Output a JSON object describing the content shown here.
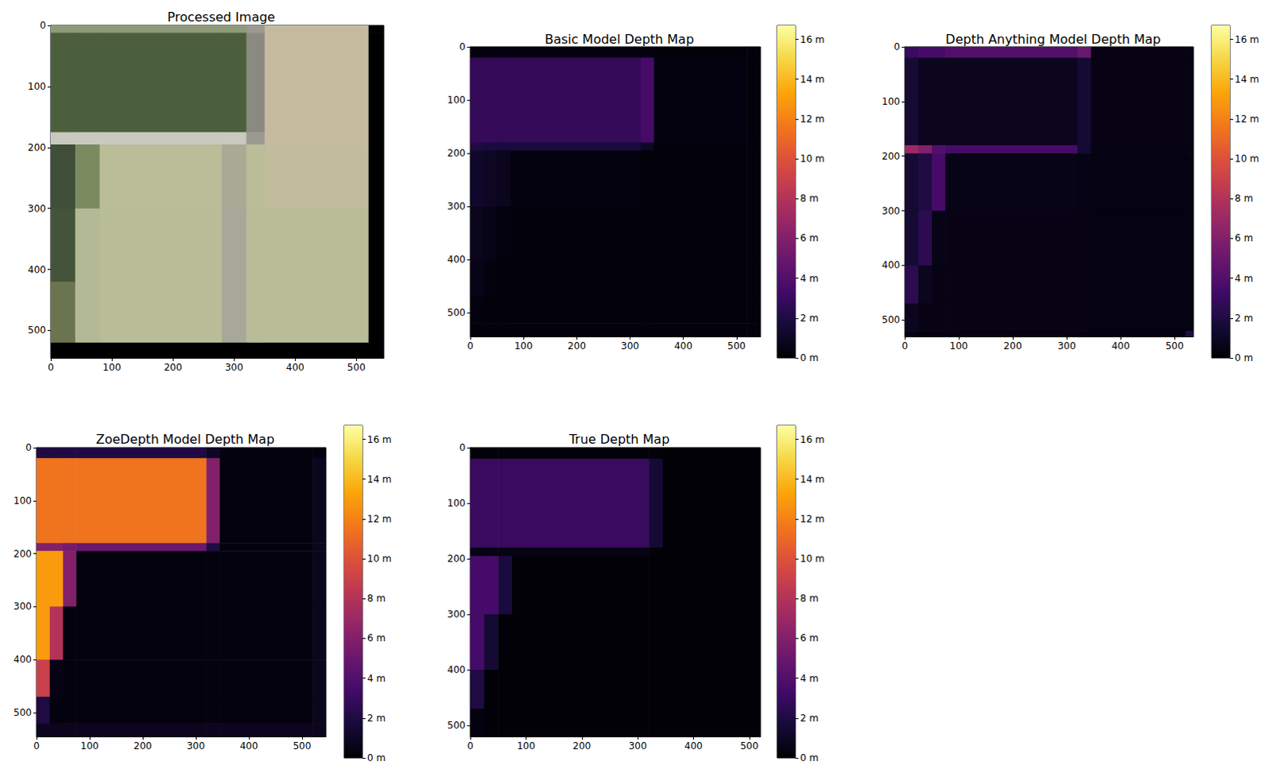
{
  "chart_data": [
    {
      "type": "image",
      "title": "Processed Image",
      "xlim": [
        0,
        545
      ],
      "ylim": [
        0,
        545
      ],
      "xticks": [
        0,
        100,
        200,
        300,
        400,
        500
      ],
      "yticks": [
        0,
        100,
        200,
        300,
        400,
        500
      ],
      "x_edges": [
        0,
        40,
        80,
        280,
        320,
        350,
        520,
        545
      ],
      "y_edges": [
        0,
        12,
        175,
        195,
        300,
        420,
        520,
        545
      ],
      "cells": [
        [
          "#8f9a7a",
          "#8f9a7a",
          "#8f9a7a",
          "#8f9a7a",
          "#9a9a90",
          "#c4baa0",
          "#000000"
        ],
        [
          "#4c5f3c",
          "#4c5f3c",
          "#4c5f3c",
          "#4c5f3c",
          "#8a8a80",
          "#c6bb9f",
          "#000000"
        ],
        [
          "#c9c9c0",
          "#c9c9c0",
          "#c9c9c0",
          "#c9c9c0",
          "#9a9a90",
          "#c6bb9f",
          "#000000"
        ],
        [
          "#3f4e38",
          "#7c8a60",
          "#b9bd98",
          "#a8aa94",
          "#b9bd98",
          "#c3bc9c",
          "#000000"
        ],
        [
          "#45533a",
          "#b4b995",
          "#b8bd98",
          "#a8a898",
          "#b8bd98",
          "#b8bd98",
          "#000000"
        ],
        [
          "#6a7550",
          "#b4b995",
          "#b8bd98",
          "#a8a898",
          "#b8bd98",
          "#b8bd98",
          "#000000"
        ],
        [
          "#000000",
          "#000000",
          "#000000",
          "#000000",
          "#000000",
          "#000000",
          "#000000"
        ]
      ]
    },
    {
      "type": "heatmap",
      "title": "Basic Model Depth Map",
      "color": "inferno",
      "xlim": [
        0,
        545
      ],
      "ylim": [
        0,
        545
      ],
      "xticks": [
        0,
        100,
        200,
        300,
        400,
        500
      ],
      "yticks": [
        0,
        100,
        200,
        300,
        400,
        500
      ],
      "x_edges": [
        0,
        25,
        50,
        75,
        320,
        345,
        520,
        545
      ],
      "y_edges": [
        0,
        20,
        180,
        195,
        300,
        400,
        470,
        520,
        545
      ],
      "cells": [
        [
          0.3,
          0.3,
          0.3,
          0.3,
          0.3,
          0.2,
          0.2
        ],
        [
          2.8,
          2.8,
          2.8,
          2.8,
          3.5,
          0.3,
          0.2
        ],
        [
          2.0,
          1.8,
          1.8,
          1.8,
          1.0,
          0.2,
          0.2
        ],
        [
          1.2,
          1.0,
          0.8,
          0.3,
          0.2,
          0.2,
          0.2
        ],
        [
          0.8,
          0.6,
          0.3,
          0.2,
          0.2,
          0.2,
          0.2
        ],
        [
          0.6,
          0.3,
          0.2,
          0.2,
          0.2,
          0.2,
          0.2
        ],
        [
          0.3,
          0.2,
          0.2,
          0.2,
          0.2,
          0.2,
          0.2
        ],
        [
          0.2,
          0.2,
          0.2,
          0.2,
          0.2,
          0.2,
          0.2
        ]
      ],
      "colorbar": {
        "range": [
          0,
          16.7
        ],
        "ticks": [
          {
            "value": 0,
            "label": "0 m"
          },
          {
            "value": 2,
            "label": "2 m"
          },
          {
            "value": 4,
            "label": "4 m"
          },
          {
            "value": 6,
            "label": "6 m"
          },
          {
            "value": 8,
            "label": "8 m"
          },
          {
            "value": 10,
            "label": "10 m"
          },
          {
            "value": 12,
            "label": "12 m"
          },
          {
            "value": 14,
            "label": "14 m"
          },
          {
            "value": 16,
            "label": "16 m"
          }
        ]
      }
    },
    {
      "type": "heatmap",
      "title": "Depth Anything Model Depth Map",
      "color": "inferno",
      "xlim": [
        0,
        535
      ],
      "ylim": [
        0,
        530
      ],
      "xticks": [
        0,
        100,
        200,
        300,
        400,
        500
      ],
      "yticks": [
        0,
        100,
        200,
        300,
        400,
        500
      ],
      "x_edges": [
        0,
        25,
        50,
        75,
        320,
        345,
        520,
        535
      ],
      "y_edges": [
        0,
        20,
        180,
        195,
        300,
        400,
        470,
        520,
        530
      ],
      "cells": [
        [
          3.0,
          3.5,
          3.5,
          4.0,
          5.0,
          0.5,
          0.5
        ],
        [
          1.5,
          0.8,
          0.8,
          0.8,
          1.5,
          0.5,
          0.5
        ],
        [
          7.0,
          6.0,
          4.0,
          3.5,
          1.5,
          0.5,
          0.5
        ],
        [
          1.5,
          2.0,
          3.5,
          0.6,
          0.5,
          0.4,
          0.4
        ],
        [
          1.5,
          2.5,
          0.6,
          0.5,
          0.5,
          0.4,
          0.4
        ],
        [
          2.5,
          0.8,
          0.5,
          0.5,
          0.5,
          0.4,
          0.4
        ],
        [
          0.8,
          0.5,
          0.5,
          0.5,
          0.5,
          0.4,
          0.4
        ],
        [
          0.3,
          0.3,
          0.3,
          0.3,
          0.3,
          0.3,
          2.0
        ]
      ],
      "colorbar": {
        "range": [
          0,
          16.7
        ],
        "ticks": [
          {
            "value": 0,
            "label": "0 m"
          },
          {
            "value": 2,
            "label": "2 m"
          },
          {
            "value": 4,
            "label": "4 m"
          },
          {
            "value": 6,
            "label": "6 m"
          },
          {
            "value": 8,
            "label": "8 m"
          },
          {
            "value": 10,
            "label": "10 m"
          },
          {
            "value": 12,
            "label": "12 m"
          },
          {
            "value": 14,
            "label": "14 m"
          },
          {
            "value": 16,
            "label": "16 m"
          }
        ]
      }
    },
    {
      "type": "heatmap",
      "title": "ZoeDepth Model Depth Map",
      "color": "inferno",
      "xlim": [
        0,
        545
      ],
      "ylim": [
        0,
        545
      ],
      "xticks": [
        0,
        100,
        200,
        300,
        400,
        500
      ],
      "yticks": [
        0,
        100,
        200,
        300,
        400,
        500
      ],
      "x_edges": [
        0,
        25,
        50,
        75,
        320,
        345,
        520,
        545
      ],
      "y_edges": [
        0,
        20,
        180,
        195,
        300,
        400,
        470,
        520,
        545
      ],
      "cells": [
        [
          2.0,
          2.0,
          2.0,
          2.0,
          1.0,
          0.3,
          0.3
        ],
        [
          11.5,
          11.5,
          11.5,
          11.5,
          6.0,
          0.3,
          0.8
        ],
        [
          6.0,
          6.0,
          5.5,
          5.0,
          2.0,
          0.3,
          0.8
        ],
        [
          13.0,
          13.0,
          6.0,
          0.3,
          0.3,
          0.3,
          0.8
        ],
        [
          13.0,
          8.0,
          0.3,
          0.3,
          0.3,
          0.3,
          0.8
        ],
        [
          9.0,
          0.5,
          0.3,
          0.3,
          0.3,
          0.3,
          0.8
        ],
        [
          2.0,
          0.3,
          0.3,
          0.3,
          0.3,
          0.3,
          0.8
        ],
        [
          0.8,
          0.8,
          0.8,
          0.8,
          0.8,
          0.8,
          0.8
        ]
      ],
      "colorbar": {
        "range": [
          0,
          16.7
        ],
        "ticks": [
          {
            "value": 0,
            "label": "0 m"
          },
          {
            "value": 2,
            "label": "2 m"
          },
          {
            "value": 4,
            "label": "4 m"
          },
          {
            "value": 6,
            "label": "6 m"
          },
          {
            "value": 8,
            "label": "8 m"
          },
          {
            "value": 10,
            "label": "10 m"
          },
          {
            "value": 12,
            "label": "12 m"
          },
          {
            "value": 14,
            "label": "14 m"
          },
          {
            "value": 16,
            "label": "16 m"
          }
        ]
      }
    },
    {
      "type": "heatmap",
      "title": "True Depth Map",
      "color": "inferno",
      "xlim": [
        0,
        520
      ],
      "ylim": [
        0,
        520
      ],
      "xticks": [
        0,
        100,
        200,
        300,
        400,
        500
      ],
      "yticks": [
        0,
        100,
        200,
        300,
        400,
        500
      ],
      "x_edges": [
        0,
        25,
        50,
        75,
        320,
        345,
        520
      ],
      "y_edges": [
        0,
        20,
        180,
        195,
        300,
        400,
        470,
        520
      ],
      "cells": [
        [
          0.2,
          0.2,
          0.2,
          0.2,
          0.2,
          0.1
        ],
        [
          3.0,
          3.0,
          3.0,
          3.0,
          1.5,
          0.1
        ],
        [
          0.5,
          0.5,
          0.5,
          0.5,
          0.2,
          0.1
        ],
        [
          3.5,
          3.5,
          1.8,
          0.1,
          0.1,
          0.1
        ],
        [
          3.5,
          1.5,
          0.1,
          0.1,
          0.1,
          0.1
        ],
        [
          2.0,
          0.1,
          0.1,
          0.1,
          0.1,
          0.1
        ],
        [
          0.3,
          0.1,
          0.1,
          0.1,
          0.1,
          0.1
        ]
      ],
      "colorbar": {
        "range": [
          0,
          16.7
        ],
        "ticks": [
          {
            "value": 0,
            "label": "0 m"
          },
          {
            "value": 2,
            "label": "2 m"
          },
          {
            "value": 4,
            "label": "4 m"
          },
          {
            "value": 6,
            "label": "6 m"
          },
          {
            "value": 8,
            "label": "8 m"
          },
          {
            "value": 10,
            "label": "10 m"
          },
          {
            "value": 12,
            "label": "12 m"
          },
          {
            "value": 14,
            "label": "14 m"
          },
          {
            "value": 16,
            "label": "16 m"
          }
        ]
      }
    }
  ]
}
